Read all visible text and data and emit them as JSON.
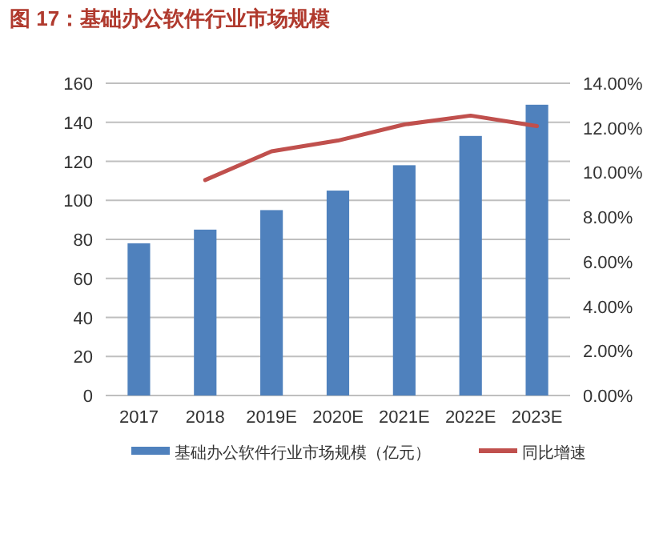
{
  "chart_data": {
    "type": "bar",
    "title": "图 17：基础办公软件行业市场规模",
    "categories": [
      "2017",
      "2018",
      "2019E",
      "2020E",
      "2021E",
      "2022E",
      "2023E"
    ],
    "series": [
      {
        "name": "基础办公软件行业市场规模（亿元）",
        "color": "#4f81bd",
        "values": [
          78,
          85,
          95,
          105,
          118,
          133,
          149
        ]
      },
      {
        "name": "同比增速",
        "type": "line",
        "axis": "y2",
        "color": "#c0504d",
        "values": [
          null,
          9.66,
          10.95,
          11.43,
          12.15,
          12.55,
          12.08
        ]
      }
    ],
    "ylim": [
      0,
      160
    ],
    "yticks": [
      0,
      20,
      40,
      60,
      80,
      100,
      120,
      140,
      160
    ],
    "y2lim": [
      0,
      14
    ],
    "y2ticks": [
      {
        "value": 0,
        "label": "0.00%"
      },
      {
        "value": 2,
        "label": "2.00%"
      },
      {
        "value": 4,
        "label": "4.00%"
      },
      {
        "value": 6,
        "label": "6.00%"
      },
      {
        "value": 8,
        "label": "8.00%"
      },
      {
        "value": 10,
        "label": "10.00%"
      },
      {
        "value": 12,
        "label": "12.00%"
      },
      {
        "value": 14,
        "label": "14.00%"
      }
    ],
    "grid": "y",
    "legend": "bottom",
    "marker": "none",
    "line_style": "solid"
  }
}
